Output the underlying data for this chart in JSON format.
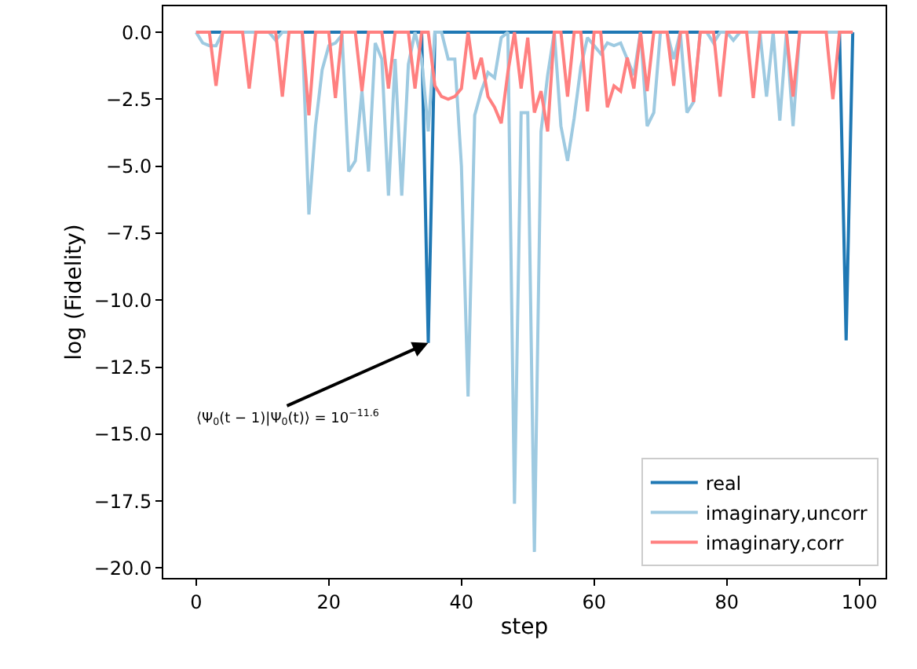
{
  "chart_data": {
    "type": "line",
    "xlabel": "step",
    "ylabel": "log (Fidelity)",
    "x": [
      0,
      1,
      2,
      3,
      4,
      5,
      6,
      7,
      8,
      9,
      10,
      11,
      12,
      13,
      14,
      15,
      16,
      17,
      18,
      19,
      20,
      21,
      22,
      23,
      24,
      25,
      26,
      27,
      28,
      29,
      30,
      31,
      32,
      33,
      34,
      35,
      36,
      37,
      38,
      39,
      40,
      41,
      42,
      43,
      44,
      45,
      46,
      47,
      48,
      49,
      50,
      51,
      52,
      53,
      54,
      55,
      56,
      57,
      58,
      59,
      60,
      61,
      62,
      63,
      64,
      65,
      66,
      67,
      68,
      69,
      70,
      71,
      72,
      73,
      74,
      75,
      76,
      77,
      78,
      79,
      80,
      81,
      82,
      83,
      84,
      85,
      86,
      87,
      88,
      89,
      90,
      91,
      92,
      93,
      94,
      95,
      96,
      97,
      98,
      99
    ],
    "series": [
      {
        "name": "real",
        "color": "#1f78b4",
        "values": [
          0,
          0,
          0,
          0,
          0,
          0,
          0,
          0,
          0,
          0,
          0,
          0,
          0,
          0,
          0,
          0,
          0,
          0,
          0,
          0,
          0,
          0,
          0,
          0,
          0,
          0,
          0,
          0,
          0,
          0,
          0,
          0,
          0,
          0,
          0,
          -11.6,
          0,
          0,
          0,
          0,
          0,
          0,
          0,
          0,
          0,
          0,
          0,
          0,
          0,
          0,
          0,
          0,
          0,
          0,
          0,
          0,
          0,
          0,
          0,
          0,
          0,
          0,
          0,
          0,
          0,
          0,
          0,
          0,
          0,
          0,
          0,
          0,
          0,
          0,
          0,
          0,
          0,
          0,
          0,
          0,
          0,
          0,
          0,
          0,
          0,
          0,
          0,
          0,
          0,
          0,
          0,
          0,
          0,
          0,
          0,
          0,
          0,
          0,
          -11.5,
          0
        ]
      },
      {
        "name": "imaginary,uncorr",
        "color": "#9ecae1",
        "values": [
          0,
          -0.4,
          -0.5,
          -0.5,
          0,
          0,
          0,
          0,
          0,
          0,
          0,
          0,
          -0.3,
          0,
          0,
          0,
          0,
          -6.8,
          -3.5,
          -1.4,
          -0.5,
          -0.4,
          -0.1,
          -5.2,
          -4.8,
          -2.2,
          -5.2,
          -0.4,
          -1.0,
          -6.1,
          -1.0,
          -6.1,
          -1.2,
          0,
          -1.0,
          -3.7,
          0,
          0,
          -1.0,
          -1.0,
          -5.0,
          -13.6,
          -3.1,
          -2.2,
          -1.5,
          -1.7,
          -0.2,
          0,
          -17.6,
          -3.0,
          -3.0,
          -19.4,
          -3.7,
          -1.6,
          0,
          -3.5,
          -4.8,
          -3.2,
          -1.3,
          -0.2,
          -0.5,
          -0.8,
          -0.4,
          -0.5,
          -0.4,
          -1.0,
          -1.6,
          0,
          -3.5,
          -3.0,
          0,
          0,
          -1.0,
          0,
          -3.0,
          -2.6,
          0,
          0,
          -0.4,
          0,
          0,
          -0.3,
          0,
          0,
          0,
          0,
          -2.4,
          0,
          -3.3,
          0,
          -3.5,
          0,
          0,
          0,
          0,
          0,
          0,
          0,
          0,
          0
        ]
      },
      {
        "name": "imaginary,corr",
        "color": "#ff8080",
        "values": [
          0,
          0,
          0,
          -2.0,
          0,
          0,
          0,
          0,
          -2.1,
          0,
          0,
          0,
          0,
          -2.4,
          0,
          0,
          0,
          -3.1,
          0,
          0,
          0,
          -2.45,
          0,
          0,
          0,
          -2.2,
          0,
          0,
          0,
          -2.1,
          0,
          0,
          0,
          -2.1,
          0,
          0,
          -2.0,
          -2.4,
          -2.5,
          -2.4,
          -2.1,
          0,
          -1.75,
          -0.95,
          -2.4,
          -2.8,
          -3.4,
          -1.5,
          0,
          -2.1,
          -0.2,
          -3.0,
          -2.2,
          -3.7,
          0,
          0,
          -2.4,
          0,
          0,
          -2.95,
          0,
          0,
          -2.8,
          -2.0,
          -2.2,
          -0.95,
          -2.1,
          0,
          -2.2,
          0,
          0,
          0,
          -2.0,
          0,
          0,
          -2.6,
          0,
          0,
          0,
          -2.4,
          0,
          0,
          0,
          0,
          -2.45,
          0,
          0,
          0,
          0,
          0,
          -2.4,
          0,
          0,
          0,
          0,
          0,
          -2.5,
          0,
          0,
          0
        ]
      }
    ],
    "xlim": [
      -4.95,
      103.95
    ],
    "ylim": [
      -20.37,
      0.97
    ],
    "xticks": [
      0,
      20,
      40,
      60,
      80,
      100
    ],
    "yticks": [
      {
        "value": 0,
        "label": "0.0"
      },
      {
        "value": -2.5,
        "label": "−2.5"
      },
      {
        "value": -5,
        "label": "−5.0"
      },
      {
        "value": -7.5,
        "label": "−7.5"
      },
      {
        "value": -10,
        "label": "−10.0"
      },
      {
        "value": -12.5,
        "label": "−12.5"
      },
      {
        "value": -15,
        "label": "−15.0"
      },
      {
        "value": -17.5,
        "label": "−17.5"
      },
      {
        "value": -20,
        "label": "−20.0"
      }
    ],
    "annotations": [
      {
        "text": "⟨Ψ$_{0}$(t − 1)|Ψ$_{0}$(t)⟩ = 10$^{−11.6}$",
        "x": 35,
        "y": -11.6
      }
    ],
    "legend": "bottom right",
    "marker": "none",
    "line_style": "solid"
  }
}
